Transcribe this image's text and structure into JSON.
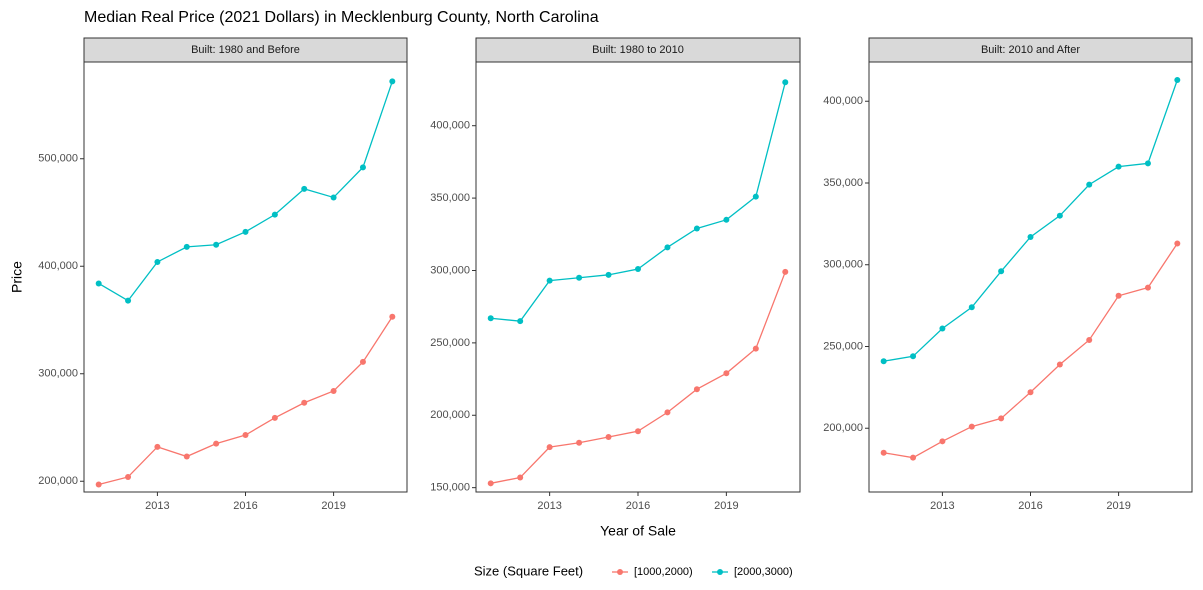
{
  "title": "Median Real Price (2021 Dollars) in Mecklenburg County, North Carolina",
  "x_label": "Year of Sale",
  "y_label": "Price",
  "legend_title": "Size (Square Feet)",
  "chart_data": [
    {
      "type": "line",
      "title": "Built: 1980 and Before",
      "x": [
        2011,
        2012,
        2013,
        2014,
        2015,
        2016,
        2017,
        2018,
        2019,
        2020,
        2021
      ],
      "xlim": [
        2010.5,
        2021.5
      ],
      "xticks": [
        2013,
        2016,
        2019
      ],
      "ylim": [
        190000,
        590000
      ],
      "yticks": [
        {
          "value": 200000,
          "label": "200,000"
        },
        {
          "value": 300000,
          "label": "300,000"
        },
        {
          "value": 400000,
          "label": "400,000"
        },
        {
          "value": 500000,
          "label": "500,000"
        }
      ],
      "series": [
        {
          "name": "[1000,2000)",
          "color": "#F8766D",
          "values": [
            197000,
            204000,
            232000,
            223000,
            235000,
            243000,
            259000,
            273000,
            284000,
            311000,
            353000
          ]
        },
        {
          "name": "[2000,3000)",
          "color": "#00BFC4",
          "values": [
            384000,
            368000,
            404000,
            418000,
            420000,
            432000,
            448000,
            472000,
            464000,
            492000,
            572000
          ]
        }
      ]
    },
    {
      "type": "line",
      "title": "Built: 1980 to 2010",
      "x": [
        2011,
        2012,
        2013,
        2014,
        2015,
        2016,
        2017,
        2018,
        2019,
        2020,
        2021
      ],
      "xlim": [
        2010.5,
        2021.5
      ],
      "xticks": [
        2013,
        2016,
        2019
      ],
      "ylim": [
        147000,
        444000
      ],
      "yticks": [
        {
          "value": 150000,
          "label": "150,000"
        },
        {
          "value": 200000,
          "label": "200,000"
        },
        {
          "value": 250000,
          "label": "250,000"
        },
        {
          "value": 300000,
          "label": "300,000"
        },
        {
          "value": 350000,
          "label": "350,000"
        },
        {
          "value": 400000,
          "label": "400,000"
        }
      ],
      "series": [
        {
          "name": "[1000,2000)",
          "color": "#F8766D",
          "values": [
            153000,
            157000,
            178000,
            181000,
            185000,
            189000,
            202000,
            218000,
            229000,
            246000,
            299000
          ]
        },
        {
          "name": "[2000,3000)",
          "color": "#00BFC4",
          "values": [
            267000,
            265000,
            293000,
            295000,
            297000,
            301000,
            316000,
            329000,
            335000,
            351000,
            430000
          ]
        }
      ]
    },
    {
      "type": "line",
      "title": "Built: 2010 and After",
      "x": [
        2011,
        2012,
        2013,
        2014,
        2015,
        2016,
        2017,
        2018,
        2019,
        2020,
        2021
      ],
      "xlim": [
        2010.5,
        2021.5
      ],
      "xticks": [
        2013,
        2016,
        2019
      ],
      "ylim": [
        161000,
        424000
      ],
      "yticks": [
        {
          "value": 200000,
          "label": "200,000"
        },
        {
          "value": 250000,
          "label": "250,000"
        },
        {
          "value": 300000,
          "label": "300,000"
        },
        {
          "value": 350000,
          "label": "350,000"
        },
        {
          "value": 400000,
          "label": "400,000"
        }
      ],
      "series": [
        {
          "name": "[1000,2000)",
          "color": "#F8766D",
          "values": [
            185000,
            182000,
            192000,
            201000,
            206000,
            222000,
            239000,
            254000,
            281000,
            286000,
            313000
          ]
        },
        {
          "name": "[2000,3000)",
          "color": "#00BFC4",
          "values": [
            241000,
            244000,
            261000,
            274000,
            296000,
            317000,
            330000,
            349000,
            360000,
            362000,
            413000
          ]
        }
      ]
    }
  ]
}
